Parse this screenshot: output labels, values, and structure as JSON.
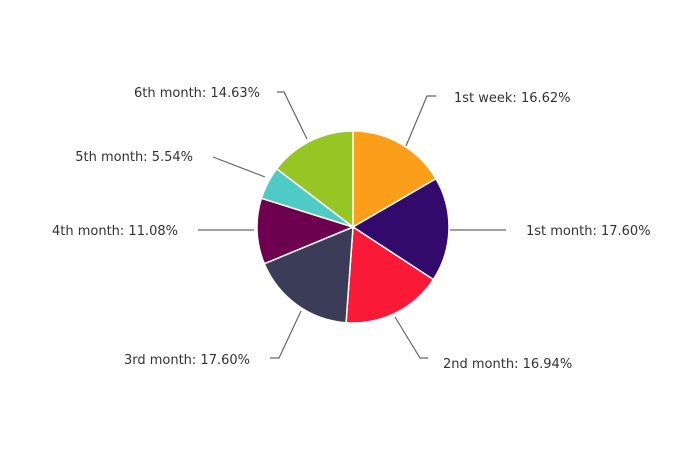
{
  "chart_data": {
    "type": "pie",
    "title": "",
    "slices": [
      {
        "label": "1st week: 16.62%",
        "name": "1st week",
        "value": 16.62,
        "color": "#fb9f1b"
      },
      {
        "label": "1st month: 17.60%",
        "name": "1st month",
        "value": 17.6,
        "color": "#320a6b"
      },
      {
        "label": "2nd month: 16.94%",
        "name": "2nd month",
        "value": 16.94,
        "color": "#fa1937"
      },
      {
        "label": "3rd month: 17.60%",
        "name": "3rd month",
        "value": 17.6,
        "color": "#3a3c58"
      },
      {
        "label": "4th month: 11.08%",
        "name": "4th month",
        "value": 11.08,
        "color": "#6e0050"
      },
      {
        "label": "5th month: 5.54%",
        "name": "5th month",
        "value": 5.54,
        "color": "#4ecbc4"
      },
      {
        "label": "6th month: 14.63%",
        "name": "6th month",
        "value": 14.63,
        "color": "#95c623"
      }
    ]
  }
}
